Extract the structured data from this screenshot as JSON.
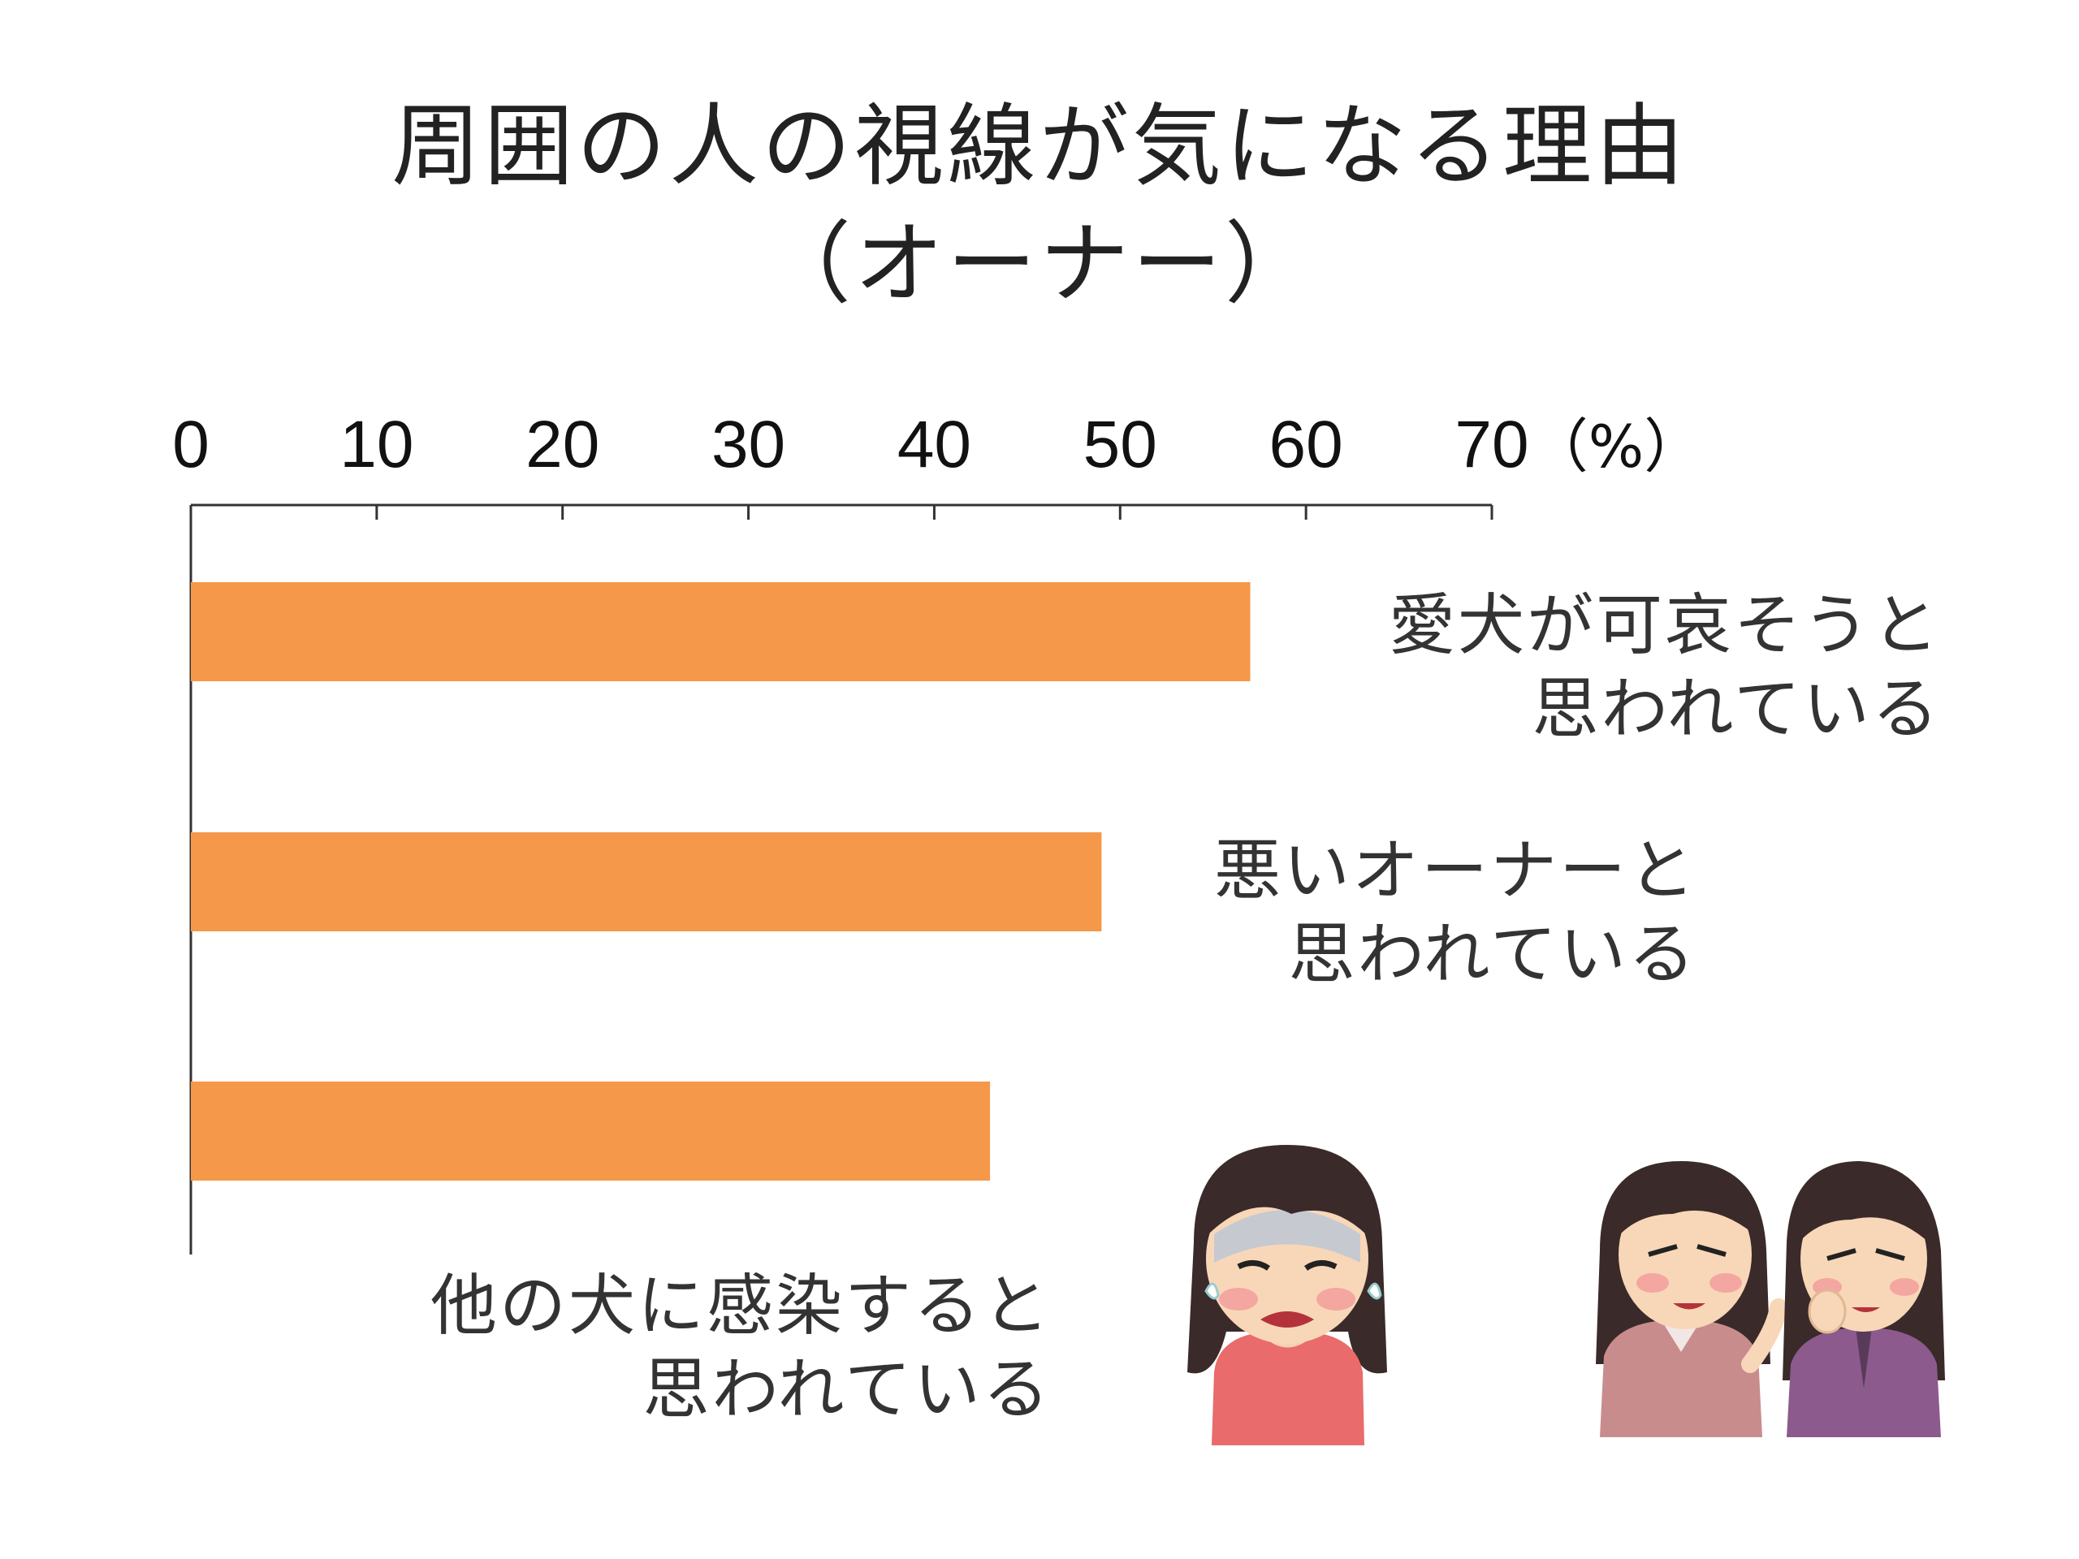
{
  "chart_data": {
    "type": "bar",
    "orientation": "horizontal",
    "title": "周囲の人の視線が気になる理由",
    "subtitle": "（オーナー）",
    "categories": [
      [
        "愛犬が可哀そうと",
        "思われている"
      ],
      [
        "悪いオーナーと",
        "思われている"
      ],
      [
        "他の犬に感染すると",
        "思われている"
      ]
    ],
    "values": [
      57,
      49,
      43
    ],
    "xlim": [
      0,
      70
    ],
    "xticks": [
      "0",
      "10",
      "20",
      "30",
      "40",
      "50",
      "60",
      "70"
    ],
    "unit": "（%）",
    "axis_position": "top",
    "grid": false,
    "legend": "none",
    "bar_color": "#F59849"
  },
  "illustrations": [
    {
      "name": "worried-woman-illustration"
    },
    {
      "name": "gossiping-women-illustration"
    }
  ]
}
